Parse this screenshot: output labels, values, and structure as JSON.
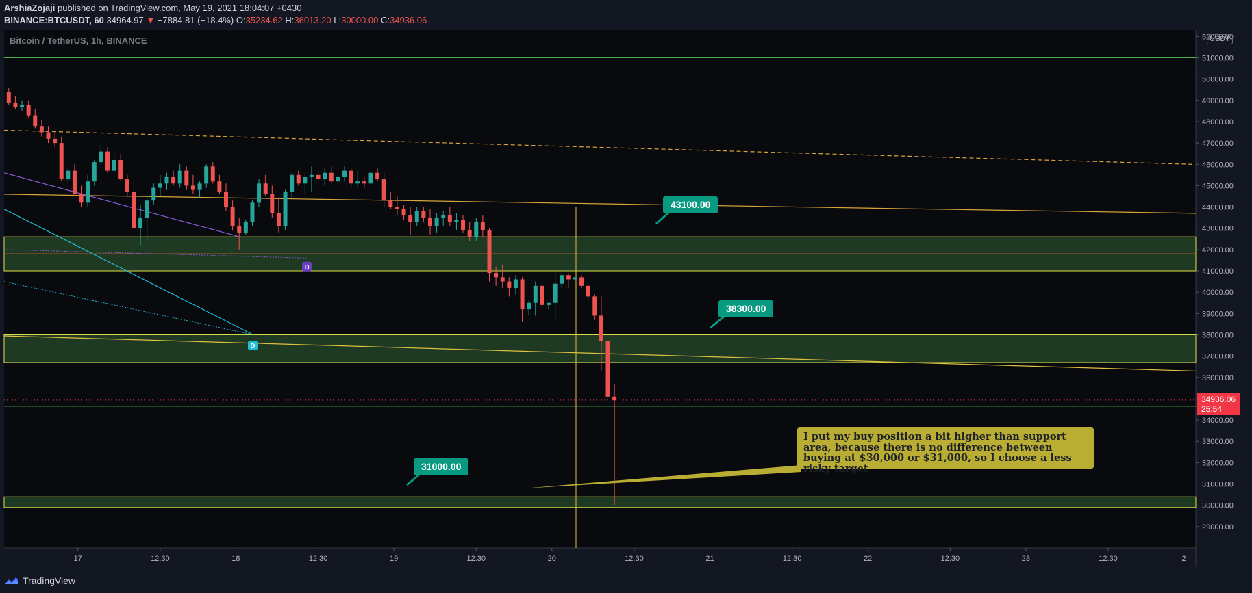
{
  "header": {
    "author": "ArshiaZojaji",
    "published": "published on TradingView.com, May 19, 2021 18:04:07 +0430",
    "symbol": "BINANCE:BTCUSDT, 60",
    "last": "34964.97",
    "change": "−7884.81 (−18.4%)",
    "o_label": "O:",
    "o_value": "35234.62",
    "h_label": "H:",
    "h_value": "36013.20",
    "l_label": "L:",
    "l_value": "30000.00",
    "c_label": "C:",
    "c_value": "34936.06"
  },
  "chart_title": "Bitcoin / TetherUS, 1h, BINANCE",
  "currency_badge": "USDT",
  "current_price": {
    "price": "34936.06",
    "countdown": "25:54"
  },
  "footer": {
    "brand": "TradingView"
  },
  "callouts": [
    {
      "label": "43100.00",
      "value": 43100
    },
    {
      "label": "38300.00",
      "value": 38300
    },
    {
      "label": "31000.00",
      "value": 31000
    }
  ],
  "note": "I put my buy position a bit higher than support area, because there is no difference between buying at $30,000 or $31,000, so I choose a less risky target",
  "colors": {
    "background": "#131722",
    "plot": "#090a0e",
    "up": "#26a69a",
    "down": "#ef5350",
    "zone": "#1e3a22",
    "zone_border": "#e0e04a",
    "trend": "#d9a43c",
    "callout": "#089981",
    "note": "#b9ad33",
    "cyan": "#20bcd8",
    "purple": "#8a5bd6"
  },
  "chart_data": {
    "type": "candlestick",
    "title": "Bitcoin / TetherUS, 1h, BINANCE",
    "yticks": [
      29000,
      30000,
      31000,
      32000,
      33000,
      34000,
      35000,
      36000,
      37000,
      38000,
      39000,
      40000,
      41000,
      42000,
      43000,
      44000,
      45000,
      46000,
      47000,
      48000,
      49000,
      50000,
      51000,
      52000
    ],
    "ytick_labels": [
      "29000.00",
      "30000.00",
      "31000.00",
      "32000.00",
      "33000.00",
      "34000.00",
      "35000.00",
      "36000.00",
      "37000.00",
      "38000.00",
      "39000.00",
      "40000.00",
      "41000.00",
      "42000.00",
      "43000.00",
      "44000.00",
      "45000.00",
      "46000.00",
      "47000.00",
      "48000.00",
      "49000.00",
      "50000.00",
      "51000.00",
      "52000.00"
    ],
    "ylim": [
      28000,
      52300
    ],
    "xticks": [
      {
        "t": 11,
        "label": "17"
      },
      {
        "t": 23.5,
        "label": "12:30"
      },
      {
        "t": 35,
        "label": "18"
      },
      {
        "t": 47.5,
        "label": "12:30"
      },
      {
        "t": 59,
        "label": "19"
      },
      {
        "t": 71.5,
        "label": "12:30"
      },
      {
        "t": 83,
        "label": "20"
      },
      {
        "t": 95.5,
        "label": "12:30"
      },
      {
        "t": 107,
        "label": "21"
      },
      {
        "t": 119.5,
        "label": "12:30"
      },
      {
        "t": 131,
        "label": "22"
      },
      {
        "t": 143.5,
        "label": "12:30"
      },
      {
        "t": 155,
        "label": "23"
      },
      {
        "t": 167.5,
        "label": "12:30"
      },
      {
        "t": 179,
        "label": "2"
      }
    ],
    "xlim": [
      0,
      180.5
    ],
    "candles": [
      [
        49400,
        49600,
        48800,
        48900
      ],
      [
        48900,
        49200,
        48600,
        48700
      ],
      [
        48700,
        49000,
        48500,
        48800
      ],
      [
        48800,
        49000,
        48200,
        48300
      ],
      [
        48300,
        48600,
        47700,
        47800
      ],
      [
        47800,
        48100,
        47300,
        47500
      ],
      [
        47500,
        47800,
        47000,
        47200
      ],
      [
        47200,
        47500,
        46800,
        47000
      ],
      [
        47000,
        47300,
        45200,
        45300
      ],
      [
        45300,
        45800,
        45100,
        45700
      ],
      [
        45700,
        46000,
        44500,
        44600
      ],
      [
        44600,
        45000,
        44000,
        44200
      ],
      [
        44200,
        45500,
        44000,
        45200
      ],
      [
        45200,
        46200,
        45000,
        46100
      ],
      [
        46100,
        47000,
        45800,
        46600
      ],
      [
        46600,
        46800,
        45600,
        45700
      ],
      [
        45700,
        46500,
        45600,
        46200
      ],
      [
        46200,
        46500,
        45200,
        45300
      ],
      [
        45300,
        45500,
        44500,
        44700
      ],
      [
        44700,
        45400,
        42600,
        43000
      ],
      [
        43000,
        44100,
        42200,
        43500
      ],
      [
        43500,
        44500,
        42400,
        44300
      ],
      [
        44300,
        45100,
        44100,
        44900
      ],
      [
        44900,
        45500,
        44500,
        45100
      ],
      [
        45100,
        45600,
        44800,
        45400
      ],
      [
        45400,
        45700,
        45000,
        45100
      ],
      [
        45100,
        46000,
        44900,
        45700
      ],
      [
        45700,
        45900,
        44800,
        45000
      ],
      [
        45000,
        45500,
        44600,
        44800
      ],
      [
        44800,
        45200,
        44400,
        45100
      ],
      [
        45100,
        46000,
        44900,
        45900
      ],
      [
        45900,
        46100,
        45100,
        45200
      ],
      [
        45200,
        45500,
        44600,
        44700
      ],
      [
        44700,
        45100,
        43800,
        44000
      ],
      [
        44000,
        44300,
        42900,
        43100
      ],
      [
        43100,
        43500,
        42000,
        42800
      ],
      [
        42800,
        43400,
        42700,
        43300
      ],
      [
        43300,
        44300,
        43100,
        44200
      ],
      [
        44200,
        45300,
        44000,
        45100
      ],
      [
        45100,
        45500,
        44500,
        44600
      ],
      [
        44600,
        45000,
        43500,
        43700
      ],
      [
        43700,
        44400,
        42800,
        43100
      ],
      [
        43100,
        44800,
        42900,
        44700
      ],
      [
        44700,
        45600,
        44400,
        45500
      ],
      [
        45500,
        45700,
        45000,
        45100
      ],
      [
        45100,
        45600,
        44600,
        45400
      ],
      [
        45400,
        45900,
        44700,
        45500
      ],
      [
        45500,
        45700,
        45000,
        45300
      ],
      [
        45300,
        45800,
        45000,
        45600
      ],
      [
        45600,
        45900,
        45100,
        45200
      ],
      [
        45200,
        45500,
        45000,
        45400
      ],
      [
        45400,
        45900,
        45200,
        45700
      ],
      [
        45700,
        45800,
        44900,
        45100
      ],
      [
        45100,
        45700,
        44900,
        45200
      ],
      [
        45200,
        45400,
        44900,
        45100
      ],
      [
        45100,
        45700,
        45000,
        45600
      ],
      [
        45600,
        45800,
        45200,
        45300
      ],
      [
        45300,
        45600,
        44000,
        44300
      ],
      [
        44300,
        44700,
        43900,
        44000
      ],
      [
        44000,
        44500,
        43600,
        43900
      ],
      [
        43900,
        44100,
        43400,
        43600
      ],
      [
        43600,
        44000,
        42700,
        43300
      ],
      [
        43300,
        44000,
        43100,
        43800
      ],
      [
        43800,
        44000,
        43300,
        43500
      ],
      [
        43500,
        43900,
        42700,
        43100
      ],
      [
        43100,
        43700,
        42800,
        43500
      ],
      [
        43500,
        43800,
        43100,
        43600
      ],
      [
        43600,
        44000,
        43100,
        43300
      ],
      [
        43300,
        43700,
        42900,
        43400
      ],
      [
        43400,
        43600,
        42800,
        42900
      ],
      [
        42900,
        43300,
        42400,
        42600
      ],
      [
        42600,
        43500,
        42400,
        43300
      ],
      [
        43300,
        43600,
        42600,
        42900
      ],
      [
        42900,
        43000,
        40500,
        40900
      ],
      [
        40900,
        41200,
        40300,
        40700
      ],
      [
        40700,
        41300,
        40200,
        40500
      ],
      [
        40500,
        40700,
        39800,
        40200
      ],
      [
        40200,
        40800,
        39900,
        40600
      ],
      [
        40600,
        40700,
        38600,
        39200
      ],
      [
        39200,
        39600,
        38900,
        39500
      ],
      [
        39500,
        40500,
        38900,
        40300
      ],
      [
        40300,
        40400,
        39200,
        39400
      ],
      [
        39400,
        39500,
        39200,
        39500
      ],
      [
        39500,
        40900,
        38600,
        40400
      ],
      [
        40400,
        40900,
        40200,
        40800
      ],
      [
        40800,
        40900,
        40200,
        40600
      ],
      [
        40600,
        40800,
        40300,
        40700
      ],
      [
        40700,
        40800,
        40200,
        40300
      ],
      [
        40300,
        40400,
        39600,
        39800
      ],
      [
        39800,
        39900,
        38700,
        38900
      ],
      [
        38900,
        39800,
        36300,
        37700
      ],
      [
        37700,
        38000,
        32100,
        35100
      ],
      [
        35100,
        35700,
        30000,
        34936
      ]
    ],
    "zones": [
      [
        41000,
        42600
      ],
      [
        36700,
        38000
      ],
      [
        29900,
        30400
      ]
    ],
    "hlines": [
      51000,
      41800,
      34650
    ],
    "last_price": 34936
  }
}
